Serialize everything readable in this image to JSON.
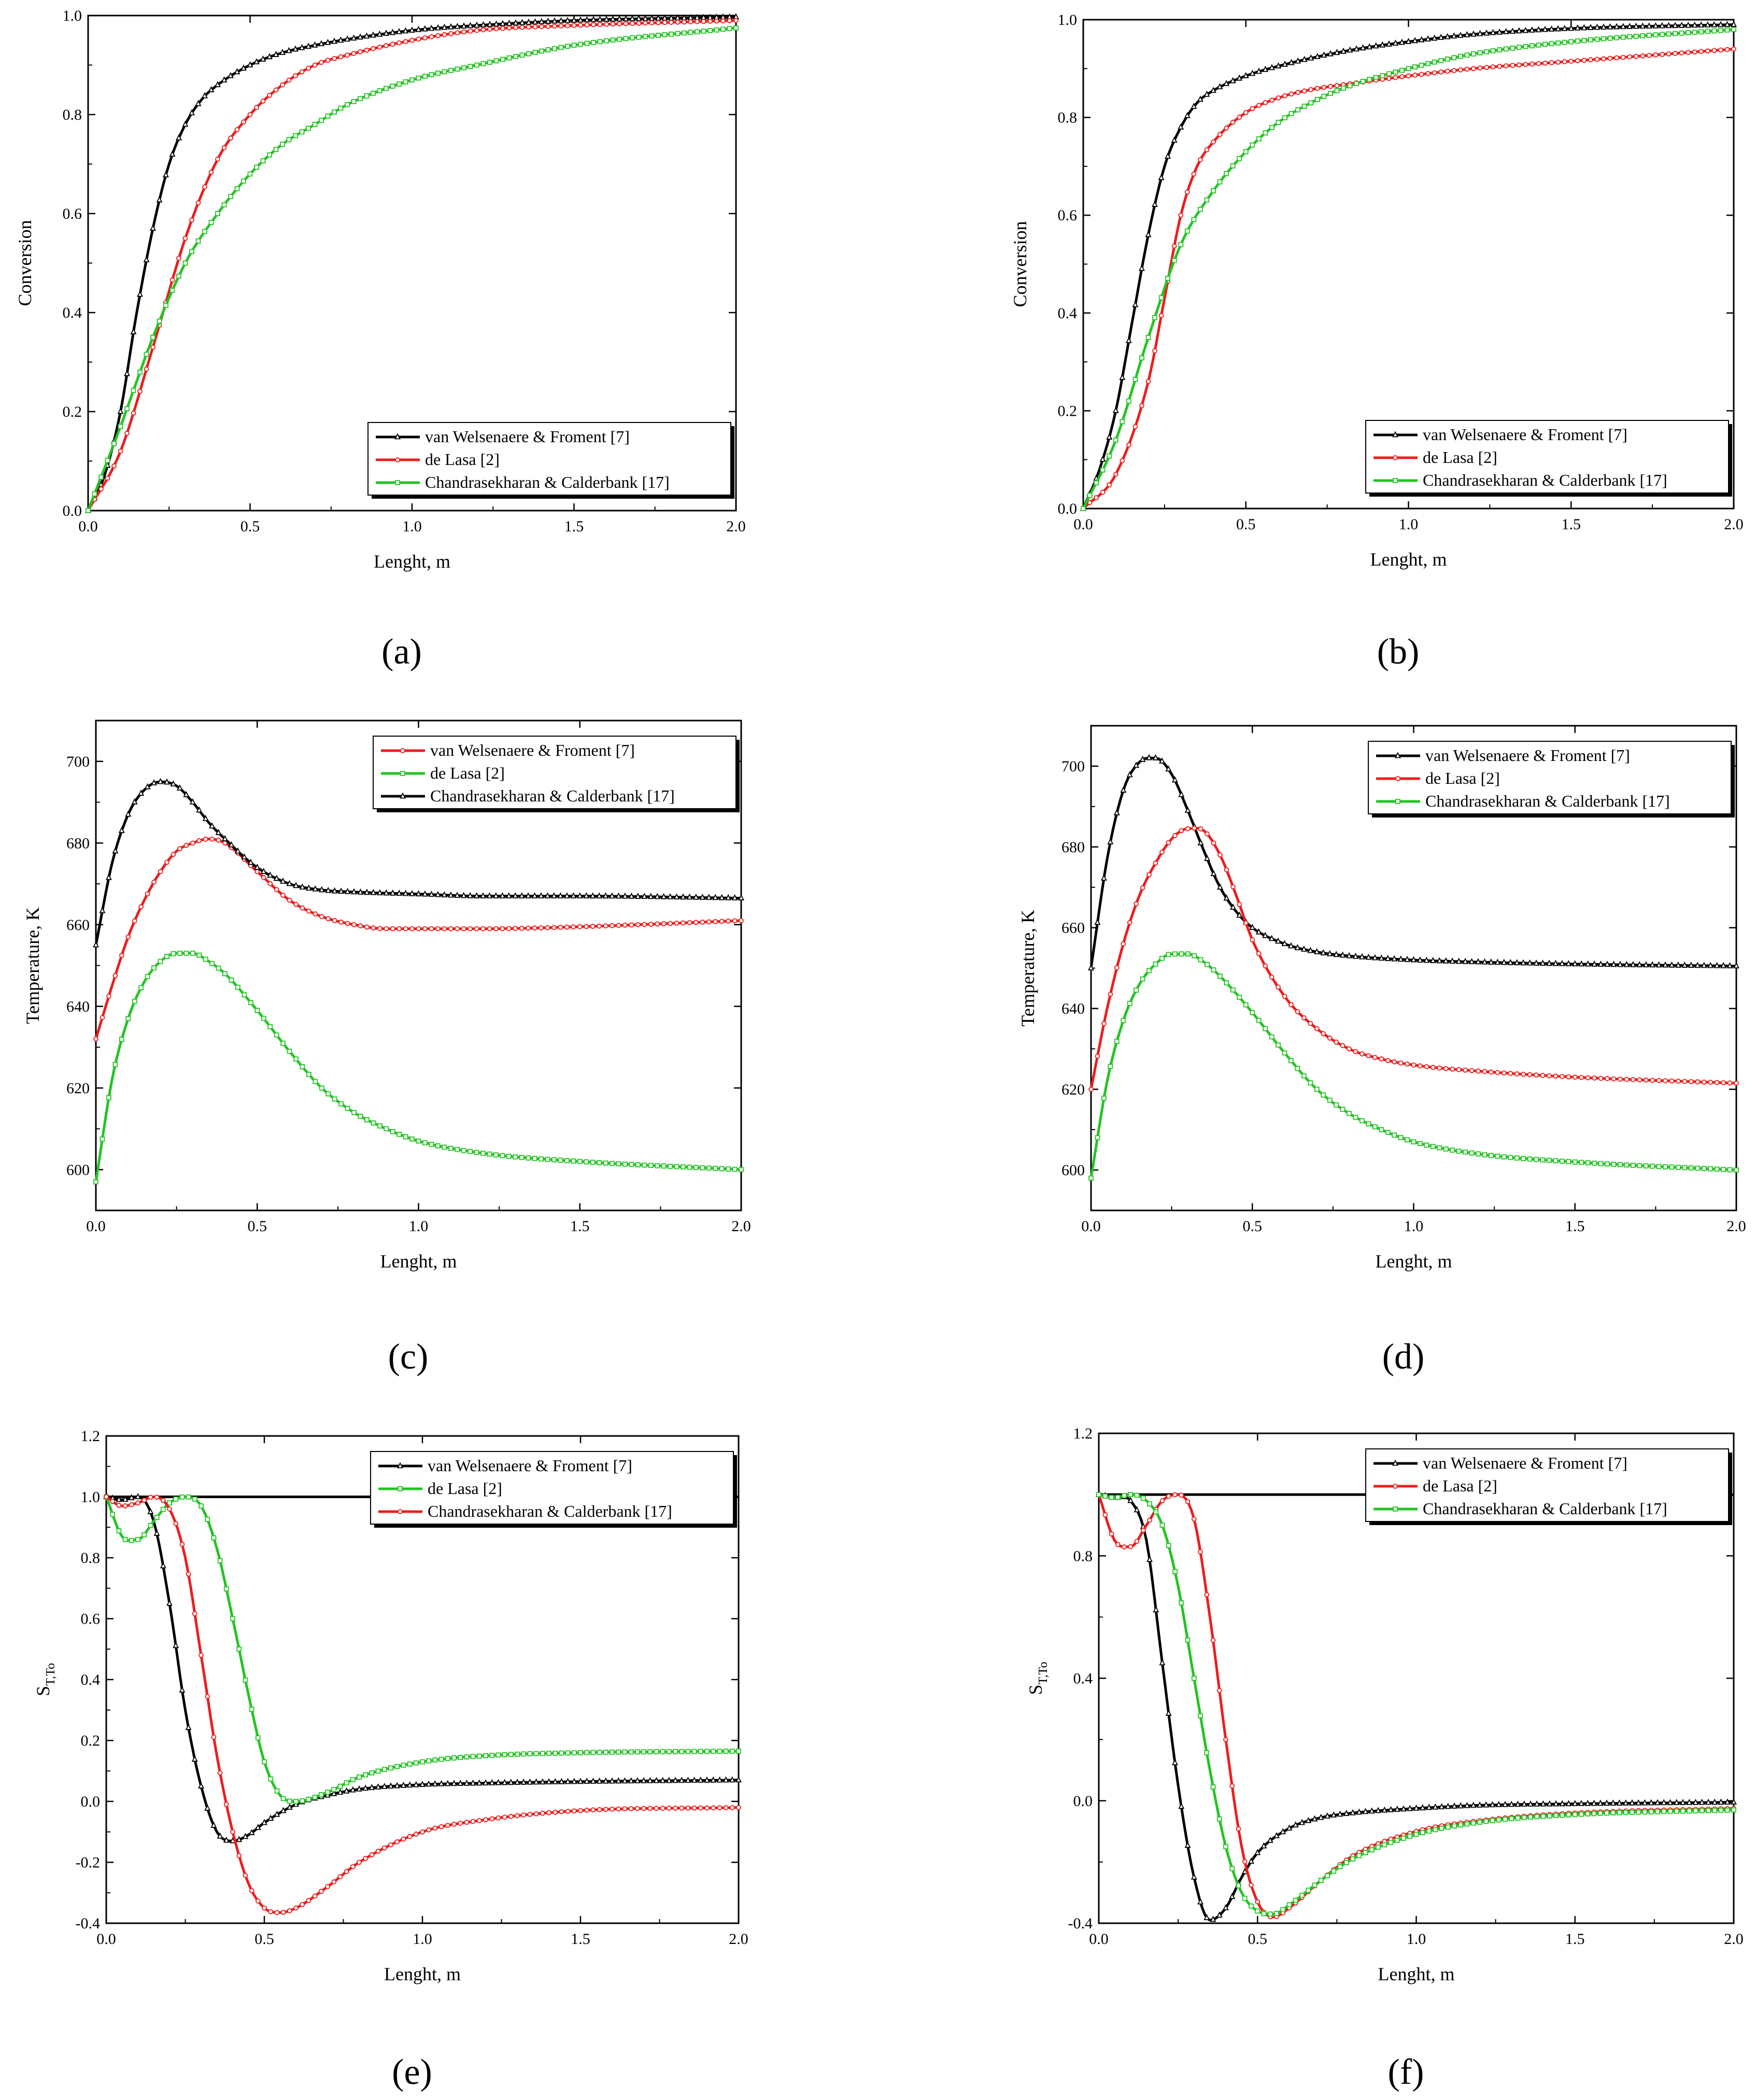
{
  "figure": {
    "panels": [
      "(a)",
      "(b)",
      "(c)",
      "(d)",
      "(e)",
      "(f)"
    ]
  },
  "chart_data": [
    {
      "panel_label": "(a)",
      "type": "line",
      "xlabel": "Lenght, m",
      "ylabel": "Conversion",
      "xlim": [
        0,
        2
      ],
      "ylim": [
        0,
        1
      ],
      "xticks": [
        0,
        0.5,
        1,
        1.5,
        2
      ],
      "xtick_labels": [
        "0.0",
        "0.5",
        "1.0",
        "1.5",
        "2.0"
      ],
      "yticks": [
        0,
        0.2,
        0.4,
        0.6,
        0.8,
        1
      ],
      "ytick_labels": [
        "0.0",
        "0.2",
        "0.4",
        "0.6",
        "0.8",
        "1.0"
      ],
      "legend_position": "bottom-right",
      "grid": false,
      "series": [
        {
          "name": "van Welsenaere & Froment [7]",
          "color": "#000000",
          "marker": "triangle",
          "x": [
            0,
            0.05,
            0.1,
            0.15,
            0.2,
            0.25,
            0.3,
            0.35,
            0.4,
            0.5,
            0.6,
            0.7,
            0.8,
            1.0,
            1.2,
            1.5,
            2.0
          ],
          "y": [
            0,
            0.07,
            0.2,
            0.4,
            0.57,
            0.7,
            0.78,
            0.83,
            0.86,
            0.9,
            0.925,
            0.94,
            0.952,
            0.97,
            0.98,
            0.99,
            0.997
          ]
        },
        {
          "name": "de Lasa [2]",
          "color": "#ee1c1c",
          "marker": "circle",
          "x": [
            0,
            0.1,
            0.2,
            0.3,
            0.4,
            0.5,
            0.6,
            0.7,
            0.8,
            1.0,
            1.2,
            1.5,
            2.0
          ],
          "y": [
            0,
            0.12,
            0.33,
            0.55,
            0.71,
            0.8,
            0.86,
            0.9,
            0.92,
            0.95,
            0.97,
            0.98,
            0.99
          ]
        },
        {
          "name": "Chandrasekharan & Calderbank [17]",
          "color": "#22c422",
          "marker": "square",
          "x": [
            0,
            0.1,
            0.2,
            0.3,
            0.4,
            0.5,
            0.6,
            0.7,
            0.8,
            1.0,
            1.2,
            1.5,
            2.0
          ],
          "y": [
            0,
            0.17,
            0.35,
            0.5,
            0.6,
            0.68,
            0.74,
            0.78,
            0.82,
            0.87,
            0.9,
            0.94,
            0.975
          ]
        }
      ]
    },
    {
      "panel_label": "(b)",
      "type": "line",
      "xlabel": "Lenght, m",
      "ylabel": "Conversion",
      "xlim": [
        0,
        2
      ],
      "ylim": [
        0,
        1
      ],
      "xticks": [
        0,
        0.5,
        1,
        1.5,
        2
      ],
      "xtick_labels": [
        "0.0",
        "0.5",
        "1.0",
        "1.5",
        "2.0"
      ],
      "yticks": [
        0,
        0.2,
        0.4,
        0.6,
        0.8,
        1
      ],
      "ytick_labels": [
        "0.0",
        "0.2",
        "0.4",
        "0.6",
        "0.8",
        "1.0"
      ],
      "legend_position": "bottom-right",
      "grid": false,
      "series": [
        {
          "name": "van Welsenaere & Froment [7]",
          "color": "#000000",
          "marker": "triangle",
          "x": [
            0,
            0.05,
            0.1,
            0.15,
            0.2,
            0.25,
            0.3,
            0.35,
            0.4,
            0.5,
            0.6,
            0.8,
            1.0,
            1.2,
            1.5,
            2.0
          ],
          "y": [
            0,
            0.08,
            0.2,
            0.38,
            0.56,
            0.7,
            0.78,
            0.83,
            0.855,
            0.885,
            0.905,
            0.935,
            0.955,
            0.97,
            0.982,
            0.99
          ]
        },
        {
          "name": "de Lasa [2]",
          "color": "#ee1c1c",
          "marker": "circle",
          "x": [
            0,
            0.1,
            0.2,
            0.25,
            0.3,
            0.35,
            0.4,
            0.5,
            0.6,
            0.7,
            0.8,
            1.0,
            1.2,
            1.5,
            2.0
          ],
          "y": [
            0,
            0.07,
            0.26,
            0.43,
            0.6,
            0.7,
            0.75,
            0.81,
            0.84,
            0.857,
            0.867,
            0.885,
            0.9,
            0.915,
            0.94
          ]
        },
        {
          "name": "Chandrasekharan & Calderbank [17]",
          "color": "#22c422",
          "marker": "square",
          "x": [
            0,
            0.1,
            0.2,
            0.3,
            0.4,
            0.5,
            0.6,
            0.7,
            0.8,
            1.0,
            1.2,
            1.5,
            2.0
          ],
          "y": [
            0,
            0.14,
            0.35,
            0.54,
            0.65,
            0.73,
            0.79,
            0.83,
            0.86,
            0.9,
            0.93,
            0.955,
            0.98
          ]
        }
      ]
    },
    {
      "panel_label": "(c)",
      "type": "line",
      "xlabel": "Lenght, m",
      "ylabel": "Temperature, K",
      "xlim": [
        0,
        2
      ],
      "ylim": [
        590,
        710
      ],
      "xticks": [
        0,
        0.5,
        1,
        1.5,
        2
      ],
      "xtick_labels": [
        "0.0",
        "0.5",
        "1.0",
        "1.5",
        "2.0"
      ],
      "yticks": [
        600,
        620,
        640,
        660,
        680,
        700
      ],
      "ytick_labels": [
        "600",
        "620",
        "640",
        "660",
        "680",
        "700"
      ],
      "legend_position": "top-right",
      "grid": false,
      "series": [
        {
          "name": "van Welsenaere & Froment [7]",
          "color": "#ee1c1c",
          "marker": "circle",
          "x": [
            0,
            0.05,
            0.1,
            0.15,
            0.2,
            0.25,
            0.3,
            0.35,
            0.4,
            0.5,
            0.6,
            0.7,
            0.8,
            0.9,
            1.0,
            1.2,
            1.5,
            2.0
          ],
          "y": [
            632,
            645,
            657,
            666,
            673,
            678,
            680,
            681,
            680,
            673,
            666,
            662,
            660,
            659,
            659,
            659,
            659.5,
            661
          ]
        },
        {
          "name": "de Lasa [2]",
          "color": "#22c422",
          "marker": "square",
          "x": [
            0,
            0.05,
            0.1,
            0.15,
            0.2,
            0.25,
            0.3,
            0.35,
            0.4,
            0.5,
            0.6,
            0.7,
            0.8,
            0.9,
            1.0,
            1.2,
            1.5,
            2.0
          ],
          "y": [
            597,
            622,
            637,
            646,
            651,
            653,
            653,
            651,
            648,
            639,
            629,
            620,
            614,
            610,
            607,
            604,
            602,
            600
          ]
        },
        {
          "name": "Chandrasekharan & Calderbank [17]",
          "color": "#000000",
          "marker": "triangle",
          "x": [
            0,
            0.05,
            0.1,
            0.15,
            0.2,
            0.25,
            0.3,
            0.35,
            0.4,
            0.5,
            0.6,
            0.7,
            0.8,
            1.0,
            1.2,
            1.5,
            2.0
          ],
          "y": [
            655,
            675,
            687,
            693,
            695,
            694,
            690,
            685,
            681,
            674,
            670,
            668.5,
            668,
            667.5,
            667,
            667,
            666.5
          ]
        }
      ]
    },
    {
      "panel_label": "(d)",
      "type": "line",
      "xlabel": "Lenght, m",
      "ylabel": "Temperature, K",
      "xlim": [
        0,
        2
      ],
      "ylim": [
        590,
        710
      ],
      "xticks": [
        0,
        0.5,
        1,
        1.5,
        2
      ],
      "xtick_labels": [
        "0.0",
        "0.5",
        "1.0",
        "1.5",
        "2.0"
      ],
      "yticks": [
        600,
        620,
        640,
        660,
        680,
        700
      ],
      "ytick_labels": [
        "600",
        "620",
        "640",
        "660",
        "680",
        "700"
      ],
      "legend_position": "top-right",
      "grid": false,
      "series": [
        {
          "name": "van Welsenaere & Froment [7]",
          "color": "#000000",
          "marker": "triangle",
          "x": [
            0,
            0.05,
            0.1,
            0.15,
            0.2,
            0.25,
            0.3,
            0.35,
            0.4,
            0.45,
            0.5,
            0.6,
            0.7,
            0.8,
            1.0,
            1.2,
            1.5,
            2.0
          ],
          "y": [
            650,
            677,
            694,
            701,
            702,
            698,
            689,
            679,
            670,
            664,
            660,
            656,
            654,
            653,
            652,
            651.5,
            651,
            650.5
          ]
        },
        {
          "name": "de Lasa [2]",
          "color": "#ee1c1c",
          "marker": "circle",
          "x": [
            0,
            0.05,
            0.1,
            0.15,
            0.2,
            0.25,
            0.3,
            0.35,
            0.4,
            0.45,
            0.5,
            0.6,
            0.7,
            0.8,
            0.9,
            1.0,
            1.2,
            1.5,
            2.0
          ],
          "y": [
            620,
            640,
            656,
            668,
            676,
            682,
            684.5,
            684,
            678,
            668,
            657,
            643,
            635,
            630,
            627.5,
            626,
            624.5,
            623,
            621.5
          ]
        },
        {
          "name": "Chandrasekharan & Calderbank [17]",
          "color": "#22c422",
          "marker": "square",
          "x": [
            0,
            0.05,
            0.1,
            0.15,
            0.2,
            0.25,
            0.3,
            0.35,
            0.4,
            0.5,
            0.6,
            0.7,
            0.8,
            0.9,
            1.0,
            1.2,
            1.5,
            2.0
          ],
          "y": [
            598,
            622,
            637,
            646,
            651,
            653.5,
            653.5,
            651.5,
            648,
            639,
            629,
            620,
            614,
            610,
            607,
            604,
            602,
            600
          ]
        }
      ]
    },
    {
      "panel_label": "(e)",
      "type": "line",
      "xlabel": "Lenght, m",
      "ylabel": "S",
      "ylabel_subscript": "T,To",
      "xlim": [
        0,
        2
      ],
      "ylim": [
        -0.4,
        1.2
      ],
      "xticks": [
        0,
        0.5,
        1,
        1.5,
        2
      ],
      "xtick_labels": [
        "0.0",
        "0.5",
        "1.0",
        "1.5",
        "2.0"
      ],
      "yticks": [
        -0.4,
        -0.2,
        0,
        0.2,
        0.4,
        0.6,
        0.8,
        1,
        1.2
      ],
      "ytick_labels": [
        "-0.4",
        "-0.2",
        "0.0",
        "0.2",
        "0.4",
        "0.6",
        "0.8",
        "1.0",
        "1.2"
      ],
      "legend_position": "top-right",
      "grid": false,
      "reference_line": 1,
      "series": [
        {
          "name": "van Welsenaere & Froment [7]",
          "color": "#000000",
          "marker": "triangle",
          "x": [
            0,
            0.05,
            0.1,
            0.15,
            0.2,
            0.25,
            0.3,
            0.35,
            0.4,
            0.45,
            0.5,
            0.6,
            0.7,
            0.8,
            1.0,
            1.2,
            1.5,
            2.0
          ],
          "y": [
            1,
            0.99,
            1,
            0.92,
            0.65,
            0.3,
            0.05,
            -0.1,
            -0.13,
            -0.11,
            -0.07,
            -0.01,
            0.02,
            0.04,
            0.055,
            0.06,
            0.065,
            0.07
          ]
        },
        {
          "name": "de Lasa [2]",
          "color": "#22c422",
          "marker": "square",
          "x": [
            0,
            0.05,
            0.1,
            0.15,
            0.2,
            0.25,
            0.3,
            0.35,
            0.4,
            0.45,
            0.5,
            0.55,
            0.6,
            0.7,
            0.8,
            1.0,
            1.2,
            1.5,
            2.0
          ],
          "y": [
            1,
            0.87,
            0.86,
            0.92,
            0.98,
            1,
            0.97,
            0.83,
            0.6,
            0.35,
            0.13,
            0.02,
            0,
            0.03,
            0.08,
            0.13,
            0.15,
            0.16,
            0.165
          ]
        },
        {
          "name": "Chandrasekharan & Calderbank [17]",
          "color": "#ee1c1c",
          "marker": "circle",
          "x": [
            0,
            0.05,
            0.1,
            0.15,
            0.2,
            0.25,
            0.3,
            0.35,
            0.4,
            0.45,
            0.5,
            0.55,
            0.6,
            0.7,
            0.8,
            1.0,
            1.2,
            1.5,
            2.0
          ],
          "y": [
            1,
            0.97,
            0.98,
            1,
            0.96,
            0.8,
            0.48,
            0.15,
            -0.1,
            -0.27,
            -0.35,
            -0.365,
            -0.35,
            -0.28,
            -0.2,
            -0.1,
            -0.06,
            -0.03,
            -0.02
          ]
        }
      ]
    },
    {
      "panel_label": "(f)",
      "type": "line",
      "xlabel": "Lenght, m",
      "ylabel": "S",
      "ylabel_subscript": "T,To",
      "xlim": [
        0,
        2
      ],
      "ylim": [
        -0.4,
        1.2
      ],
      "xticks": [
        0,
        0.5,
        1,
        1.5,
        2
      ],
      "xtick_labels": [
        "0.0",
        "0.5",
        "1.0",
        "1.5",
        "2.0"
      ],
      "yticks": [
        -0.4,
        0,
        0.4,
        0.8,
        1.2
      ],
      "ytick_labels": [
        "-0.4",
        "0.0",
        "0.4",
        "0.8",
        "1.2"
      ],
      "legend_position": "top-right",
      "grid": false,
      "reference_line": 1,
      "series": [
        {
          "name": "van Welsenaere & Froment [7]",
          "color": "#000000",
          "marker": "triangle",
          "x": [
            0,
            0.05,
            0.1,
            0.15,
            0.2,
            0.25,
            0.3,
            0.35,
            0.4,
            0.45,
            0.5,
            0.6,
            0.7,
            0.8,
            1.0,
            1.2,
            1.5,
            2.0
          ],
          "y": [
            1,
            0.99,
            0.98,
            0.85,
            0.45,
            0.05,
            -0.25,
            -0.39,
            -0.35,
            -0.25,
            -0.17,
            -0.09,
            -0.055,
            -0.04,
            -0.025,
            -0.015,
            -0.01,
            -0.005
          ]
        },
        {
          "name": "de Lasa  [2]",
          "color": "#ee1c1c",
          "marker": "circle",
          "x": [
            0,
            0.05,
            0.1,
            0.15,
            0.2,
            0.25,
            0.3,
            0.35,
            0.4,
            0.45,
            0.5,
            0.55,
            0.6,
            0.7,
            0.8,
            1.0,
            1.2,
            1.5,
            2.0
          ],
          "y": [
            1,
            0.85,
            0.83,
            0.9,
            0.98,
            1,
            0.92,
            0.6,
            0.2,
            -0.15,
            -0.33,
            -0.38,
            -0.35,
            -0.26,
            -0.18,
            -0.1,
            -0.065,
            -0.04,
            -0.025
          ]
        },
        {
          "name": "Chandrasekharan & Calderbank [17]",
          "color": "#22c422",
          "marker": "square",
          "x": [
            0,
            0.05,
            0.1,
            0.15,
            0.2,
            0.25,
            0.3,
            0.35,
            0.4,
            0.45,
            0.5,
            0.55,
            0.6,
            0.7,
            0.8,
            1.0,
            1.2,
            1.5,
            2.0
          ],
          "y": [
            1,
            0.99,
            1,
            0.98,
            0.9,
            0.7,
            0.4,
            0.1,
            -0.15,
            -0.3,
            -0.36,
            -0.37,
            -0.34,
            -0.26,
            -0.19,
            -0.11,
            -0.07,
            -0.045,
            -0.03
          ]
        }
      ]
    }
  ]
}
